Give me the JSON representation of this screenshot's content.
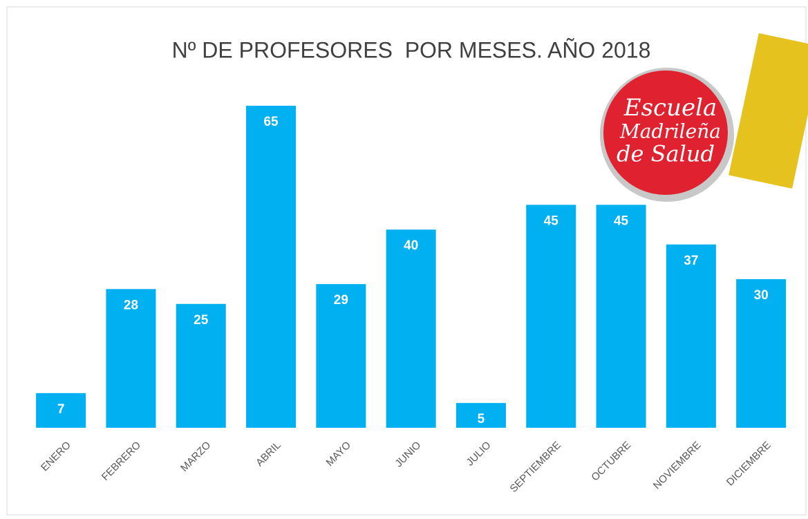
{
  "chart_data": {
    "type": "bar",
    "title": "Nº DE PROFESORES  POR MESES. AÑO 2018",
    "categories": [
      "ENERO",
      "FEBRERO",
      "MARZO",
      "ABRIL",
      "MAYO",
      "JUNIO",
      "JULIO",
      "SEPTIEMBRE",
      "OCTUBRE",
      "NOVIEMBRE",
      "DICIEMBRE"
    ],
    "values": [
      7,
      28,
      25,
      65,
      29,
      40,
      5,
      45,
      45,
      37,
      30
    ],
    "color": "#00b0f0"
  },
  "logo": {
    "lines": [
      "Escuela",
      "Madrileña",
      "de Salud"
    ]
  }
}
